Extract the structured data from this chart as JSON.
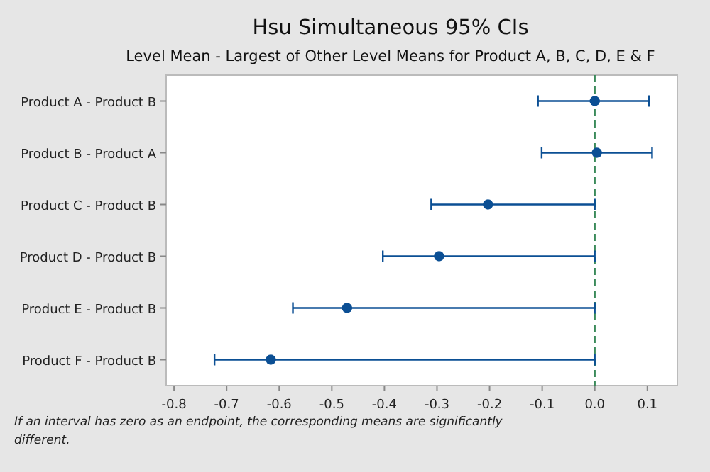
{
  "chart_data": {
    "type": "scatter",
    "orientation": "horizontal",
    "title": "Hsu Simultaneous 95% CIs",
    "subtitle": "Level Mean - Largest of Other Level Means for Product A, B, C, D, E & F",
    "categories": [
      "Product A - Product B",
      "Product B - Product A",
      "Product C - Product B",
      "Product D - Product B",
      "Product E - Product B",
      "Product F - Product B"
    ],
    "series": [
      {
        "color": "#0b4f94",
        "values": [
          0.0,
          0.004,
          -0.203,
          -0.296,
          -0.471,
          -0.616
        ],
        "errors": [
          [
            -0.108,
            0.103
          ],
          [
            -0.101,
            0.109
          ],
          [
            -0.311,
            0.0
          ],
          [
            -0.403,
            0.0
          ],
          [
            -0.574,
            0.0
          ],
          [
            -0.723,
            0.0
          ]
        ]
      }
    ],
    "xlim": [
      -0.815,
      0.157
    ],
    "xticks": [
      {
        "value": -0.8,
        "label": "-0.8"
      },
      {
        "value": -0.7,
        "label": "-0.7"
      },
      {
        "value": -0.6,
        "label": "-0.6"
      },
      {
        "value": -0.5,
        "label": "-0.5"
      },
      {
        "value": -0.4,
        "label": "-0.4"
      },
      {
        "value": -0.3,
        "label": "-0.3"
      },
      {
        "value": -0.2,
        "label": "-0.2"
      },
      {
        "value": -0.1,
        "label": "-0.1"
      },
      {
        "value": 0,
        "label": "0.0"
      },
      {
        "value": 0.1,
        "label": "0.1"
      }
    ],
    "ref_lines": [
      {
        "axis": "x",
        "value": 0,
        "color": "#3a8a5a",
        "line_style": "dashed"
      }
    ],
    "marker": "circle",
    "grid": false,
    "annotations": [
      "If an interval has zero as an endpoint, the corresponding means are significantly different."
    ]
  }
}
